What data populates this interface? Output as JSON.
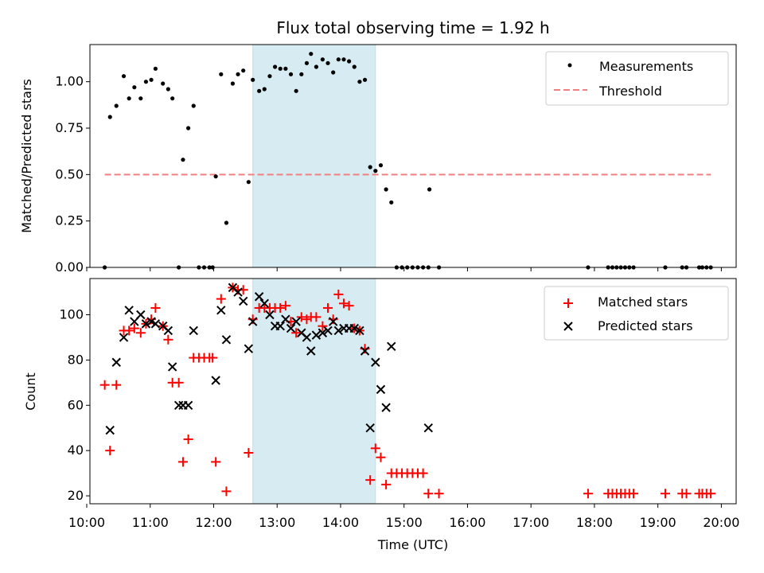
{
  "chart_data": [
    {
      "type": "scatter",
      "title": "Flux total observing time = 1.92 h",
      "ylabel": "Matched/Predicted stars",
      "xlim": [
        "10:03",
        "20:14"
      ],
      "ylim": [
        0,
        1.2
      ],
      "yticks": [
        "0.00",
        "0.25",
        "0.50",
        "0.75",
        "1.00"
      ],
      "highlight_span": [
        "12:37",
        "14:33"
      ],
      "highlight_color": "#add8e6",
      "legend_position": "top-right",
      "series": [
        {
          "name": "Measurements",
          "marker": "dot",
          "color": "#000000",
          "points": [
            [
              "10:17",
              0.0
            ],
            [
              "10:22",
              0.81
            ],
            [
              "10:28",
              0.87
            ],
            [
              "10:35",
              1.03
            ],
            [
              "10:40",
              0.91
            ],
            [
              "10:45",
              0.97
            ],
            [
              "10:51",
              0.91
            ],
            [
              "10:56",
              1.0
            ],
            [
              "11:01",
              1.01
            ],
            [
              "11:05",
              1.07
            ],
            [
              "11:12",
              0.99
            ],
            [
              "11:17",
              0.96
            ],
            [
              "11:21",
              0.91
            ],
            [
              "11:27",
              0.0
            ],
            [
              "11:31",
              0.58
            ],
            [
              "11:36",
              0.75
            ],
            [
              "11:41",
              0.87
            ],
            [
              "11:46",
              0.0
            ],
            [
              "11:51",
              0.0
            ],
            [
              "11:56",
              0.0
            ],
            [
              "11:59",
              0.0
            ],
            [
              "12:02",
              0.49
            ],
            [
              "12:07",
              1.04
            ],
            [
              "12:12",
              0.24
            ],
            [
              "12:18",
              0.99
            ],
            [
              "12:23",
              1.04
            ],
            [
              "12:28",
              1.06
            ],
            [
              "12:33",
              0.46
            ],
            [
              "12:37",
              1.01
            ],
            [
              "12:43",
              0.95
            ],
            [
              "12:48",
              0.96
            ],
            [
              "12:53",
              1.03
            ],
            [
              "12:58",
              1.08
            ],
            [
              "13:03",
              1.07
            ],
            [
              "13:08",
              1.07
            ],
            [
              "13:13",
              1.04
            ],
            [
              "13:18",
              0.95
            ],
            [
              "13:23",
              1.04
            ],
            [
              "13:28",
              1.1
            ],
            [
              "13:32",
              1.15
            ],
            [
              "13:37",
              1.08
            ],
            [
              "13:43",
              1.12
            ],
            [
              "13:48",
              1.1
            ],
            [
              "13:53",
              1.05
            ],
            [
              "13:58",
              1.12
            ],
            [
              "14:03",
              1.12
            ],
            [
              "14:08",
              1.11
            ],
            [
              "14:13",
              1.08
            ],
            [
              "14:18",
              1.0
            ],
            [
              "14:23",
              1.01
            ],
            [
              "14:28",
              0.54
            ],
            [
              "14:33",
              0.52
            ],
            [
              "14:38",
              0.55
            ],
            [
              "14:43",
              0.42
            ],
            [
              "14:48",
              0.35
            ],
            [
              "14:53",
              0.0
            ],
            [
              "14:58",
              0.0
            ],
            [
              "15:03",
              0.0
            ],
            [
              "15:08",
              0.0
            ],
            [
              "15:13",
              0.0
            ],
            [
              "15:18",
              0.0
            ],
            [
              "15:23",
              0.0
            ],
            [
              "15:24",
              0.42
            ],
            [
              "15:33",
              0.0
            ],
            [
              "17:54",
              0.0
            ],
            [
              "18:13",
              0.0
            ],
            [
              "18:17",
              0.0
            ],
            [
              "18:21",
              0.0
            ],
            [
              "18:25",
              0.0
            ],
            [
              "18:29",
              0.0
            ],
            [
              "18:33",
              0.0
            ],
            [
              "18:37",
              0.0
            ],
            [
              "19:07",
              0.0
            ],
            [
              "19:23",
              0.0
            ],
            [
              "19:27",
              0.0
            ],
            [
              "19:39",
              0.0
            ],
            [
              "19:42",
              0.0
            ],
            [
              "19:46",
              0.0
            ],
            [
              "19:50",
              0.0
            ]
          ]
        },
        {
          "name": "Threshold",
          "marker": "dashed-line",
          "color": "#f08080",
          "points": [
            [
              "10:17",
              0.5
            ],
            [
              "19:50",
              0.5
            ]
          ]
        }
      ]
    },
    {
      "type": "scatter",
      "xlabel": "Time (UTC)",
      "ylabel": "Count",
      "xlim": [
        "10:03",
        "20:14"
      ],
      "ylim": [
        16.5,
        116
      ],
      "xticks": [
        "10:00",
        "11:00",
        "12:00",
        "13:00",
        "14:00",
        "15:00",
        "16:00",
        "17:00",
        "18:00",
        "19:00",
        "20:00"
      ],
      "yticks": [
        20,
        40,
        60,
        80,
        100
      ],
      "highlight_span": [
        "12:37",
        "14:33"
      ],
      "highlight_color": "#add8e6",
      "legend_position": "top-right",
      "series": [
        {
          "name": "Matched stars",
          "marker": "plus",
          "color": "#ff0000",
          "points": [
            [
              "10:17",
              69
            ],
            [
              "10:22",
              40
            ],
            [
              "10:28",
              69
            ],
            [
              "10:35",
              93
            ],
            [
              "10:40",
              93
            ],
            [
              "10:45",
              94
            ],
            [
              "10:51",
              92
            ],
            [
              "10:56",
              96
            ],
            [
              "11:01",
              98
            ],
            [
              "11:05",
              103
            ],
            [
              "11:12",
              95
            ],
            [
              "11:17",
              89
            ],
            [
              "11:21",
              70
            ],
            [
              "11:27",
              70
            ],
            [
              "11:31",
              35
            ],
            [
              "11:36",
              45
            ],
            [
              "11:41",
              81
            ],
            [
              "11:46",
              81
            ],
            [
              "11:51",
              81
            ],
            [
              "11:56",
              81
            ],
            [
              "11:59",
              81
            ],
            [
              "12:02",
              35
            ],
            [
              "12:07",
              107
            ],
            [
              "12:12",
              22
            ],
            [
              "12:18",
              112
            ],
            [
              "12:23",
              111
            ],
            [
              "12:28",
              111
            ],
            [
              "12:33",
              39
            ],
            [
              "12:37",
              98
            ],
            [
              "12:43",
              103
            ],
            [
              "12:48",
              103
            ],
            [
              "12:53",
              103
            ],
            [
              "12:58",
              103
            ],
            [
              "13:03",
              103
            ],
            [
              "13:08",
              104
            ],
            [
              "13:13",
              97
            ],
            [
              "13:18",
              92
            ],
            [
              "13:23",
              99
            ],
            [
              "13:28",
              98
            ],
            [
              "13:32",
              99
            ],
            [
              "13:37",
              99
            ],
            [
              "13:43",
              95
            ],
            [
              "13:48",
              103
            ],
            [
              "13:53",
              98
            ],
            [
              "13:58",
              109
            ],
            [
              "14:03",
              105
            ],
            [
              "14:08",
              104
            ],
            [
              "14:13",
              94
            ],
            [
              "14:18",
              93
            ],
            [
              "14:23",
              85
            ],
            [
              "14:28",
              27
            ],
            [
              "14:33",
              41
            ],
            [
              "14:38",
              37
            ],
            [
              "14:43",
              25
            ],
            [
              "14:48",
              30
            ],
            [
              "14:53",
              30
            ],
            [
              "14:58",
              30
            ],
            [
              "15:03",
              30
            ],
            [
              "15:08",
              30
            ],
            [
              "15:13",
              30
            ],
            [
              "15:18",
              30
            ],
            [
              "15:23",
              21
            ],
            [
              "15:33",
              21
            ],
            [
              "17:54",
              21
            ],
            [
              "18:13",
              21
            ],
            [
              "18:17",
              21
            ],
            [
              "18:21",
              21
            ],
            [
              "18:25",
              21
            ],
            [
              "18:29",
              21
            ],
            [
              "18:33",
              21
            ],
            [
              "18:37",
              21
            ],
            [
              "19:07",
              21
            ],
            [
              "19:23",
              21
            ],
            [
              "19:27",
              21
            ],
            [
              "19:39",
              21
            ],
            [
              "19:42",
              21
            ],
            [
              "19:46",
              21
            ],
            [
              "19:50",
              21
            ]
          ]
        },
        {
          "name": "Predicted stars",
          "marker": "x",
          "color": "#000000",
          "points": [
            [
              "10:22",
              49
            ],
            [
              "10:28",
              79
            ],
            [
              "10:35",
              90
            ],
            [
              "10:40",
              102
            ],
            [
              "10:45",
              97
            ],
            [
              "10:51",
              100
            ],
            [
              "10:56",
              96
            ],
            [
              "11:01",
              97
            ],
            [
              "11:05",
              96
            ],
            [
              "11:12",
              95
            ],
            [
              "11:17",
              93
            ],
            [
              "11:21",
              77
            ],
            [
              "11:27",
              60
            ],
            [
              "11:31",
              60
            ],
            [
              "11:36",
              60
            ],
            [
              "11:41",
              93
            ],
            [
              "12:02",
              71
            ],
            [
              "12:07",
              102
            ],
            [
              "12:12",
              89
            ],
            [
              "12:18",
              112
            ],
            [
              "12:23",
              110
            ],
            [
              "12:28",
              106
            ],
            [
              "12:33",
              85
            ],
            [
              "12:37",
              97
            ],
            [
              "12:43",
              108
            ],
            [
              "12:48",
              105
            ],
            [
              "12:53",
              100
            ],
            [
              "12:58",
              95
            ],
            [
              "13:03",
              95
            ],
            [
              "13:08",
              98
            ],
            [
              "13:13",
              94
            ],
            [
              "13:18",
              97
            ],
            [
              "13:23",
              92
            ],
            [
              "13:28",
              90
            ],
            [
              "13:32",
              84
            ],
            [
              "13:37",
              91
            ],
            [
              "13:43",
              92
            ],
            [
              "13:48",
              93
            ],
            [
              "13:53",
              97
            ],
            [
              "13:58",
              93
            ],
            [
              "14:03",
              94
            ],
            [
              "14:08",
              94
            ],
            [
              "14:13",
              94
            ],
            [
              "14:18",
              93
            ],
            [
              "14:23",
              84
            ],
            [
              "14:28",
              50
            ],
            [
              "14:33",
              79
            ],
            [
              "14:38",
              67
            ],
            [
              "14:43",
              59
            ],
            [
              "14:48",
              86
            ],
            [
              "15:23",
              50
            ]
          ]
        }
      ]
    }
  ]
}
